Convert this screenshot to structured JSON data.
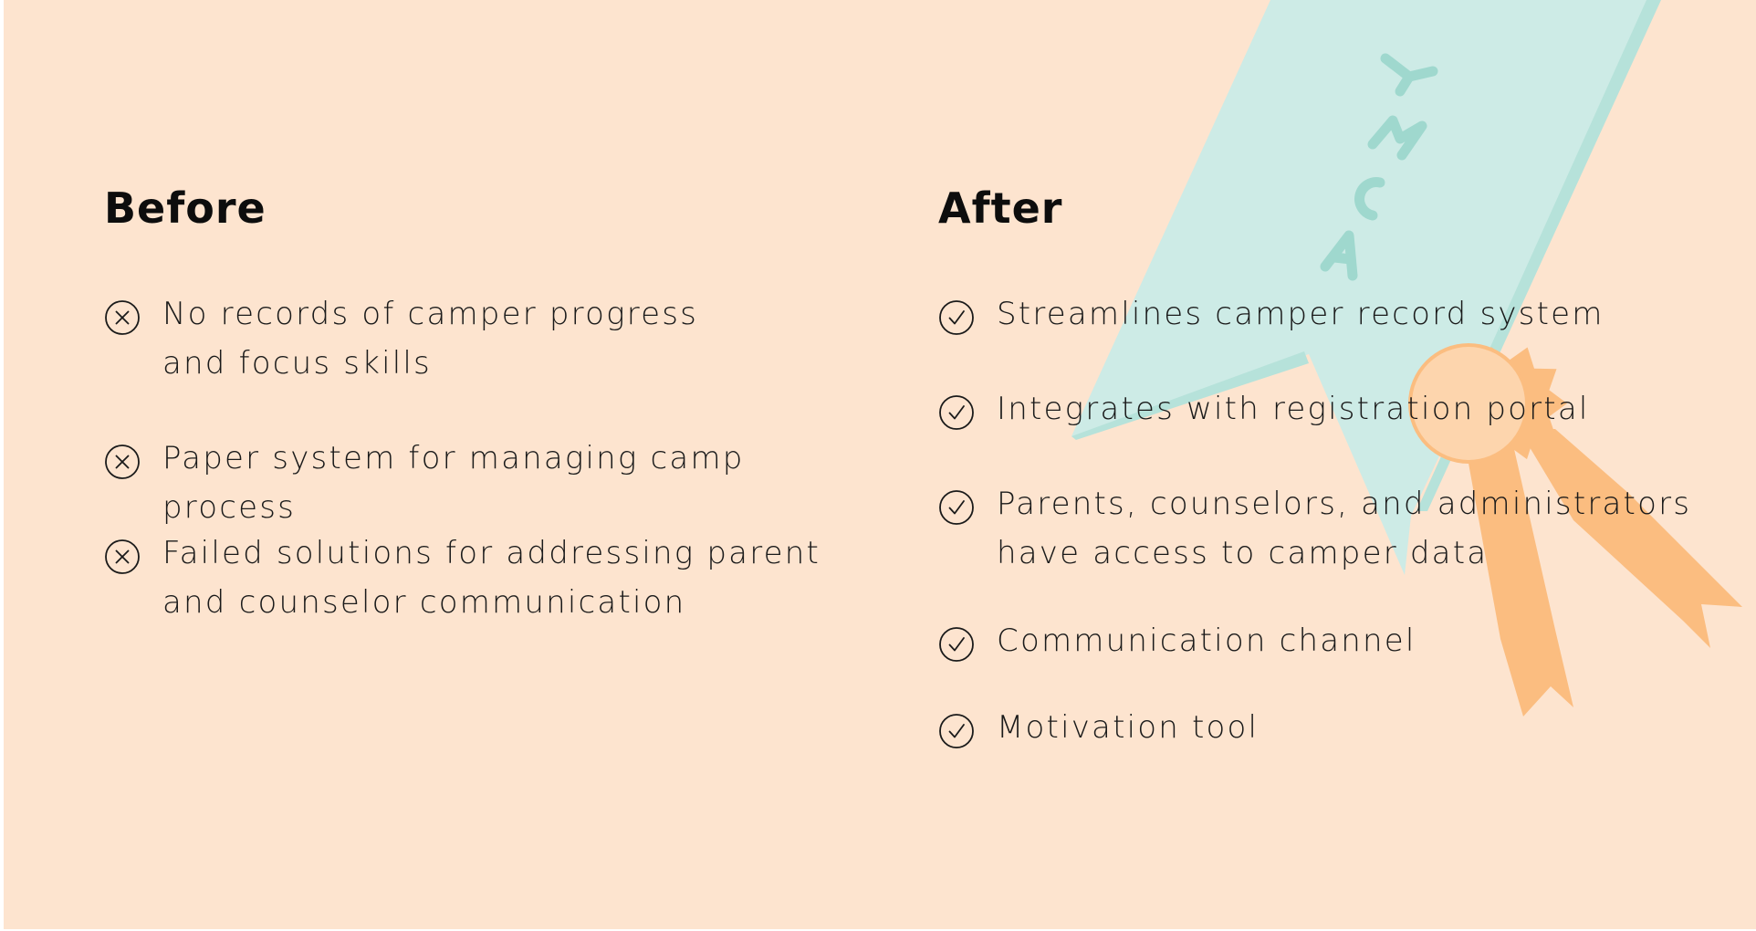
{
  "colors": {
    "background": "#fde4cf",
    "ribbon_teal": "#cdebe6",
    "ribbon_teal_dark": "#b6e2da",
    "badge_orange": "#fbbd80",
    "text": "#1a1a1a"
  },
  "artwork": {
    "ribbon_lettering": "YMCA"
  },
  "before": {
    "heading": "Before",
    "icon": "x-circle-icon",
    "items": [
      "No records of camper progress\nand focus skills",
      "Paper system for managing camp process",
      "Failed solutions for addressing parent\nand counselor communication"
    ]
  },
  "after": {
    "heading": "After",
    "icon": "check-circle-icon",
    "items": [
      "Streamlines camper record system",
      "Integrates with registration portal",
      "Parents, counselors, and administrators\nhave access to camper data",
      "Communication channel",
      "Motivation tool"
    ]
  }
}
